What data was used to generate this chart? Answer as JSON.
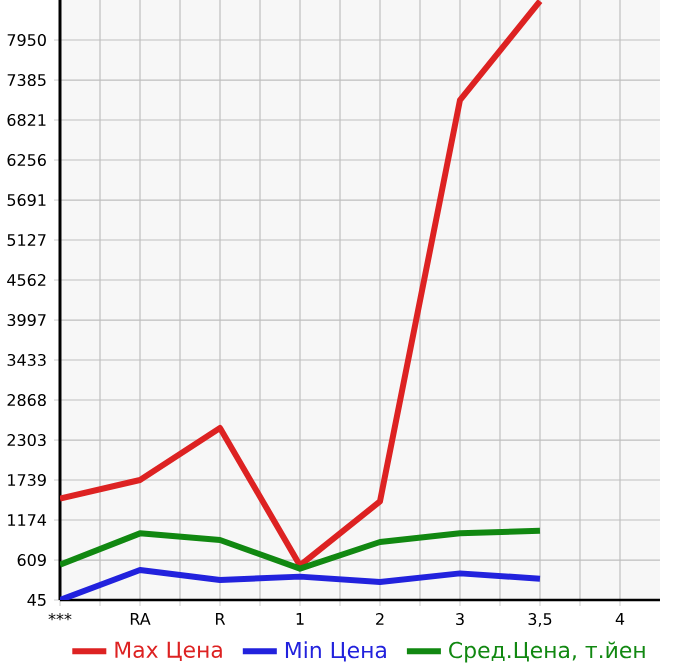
{
  "chart_data": {
    "type": "line",
    "categories": [
      "***",
      "RA",
      "R",
      "1",
      "2",
      "3",
      "3,5",
      "4"
    ],
    "series": [
      {
        "name": "Max Цена",
        "color": "#dd2222",
        "values": [
          1476,
          1739,
          2473,
          533,
          1437,
          7103,
          8500,
          null
        ]
      },
      {
        "name": "Min Цена",
        "color": "#2222dd",
        "values": [
          45,
          468,
          327,
          375,
          299,
          421,
          346,
          null
        ]
      },
      {
        "name": "Сред.Цена, т.йен",
        "color": "#118811",
        "values": [
          544,
          986,
          892,
          487,
          864,
          986,
          1024,
          null
        ]
      }
    ],
    "ylim": [
      45,
      8515
    ],
    "yticks": [
      45,
      609,
      1174,
      1739,
      2303,
      2868,
      3433,
      3997,
      4562,
      5127,
      5691,
      6256,
      6821,
      7385,
      7950
    ],
    "grid": true,
    "legend": "bottom",
    "marker": "none",
    "line_style": "solid"
  }
}
